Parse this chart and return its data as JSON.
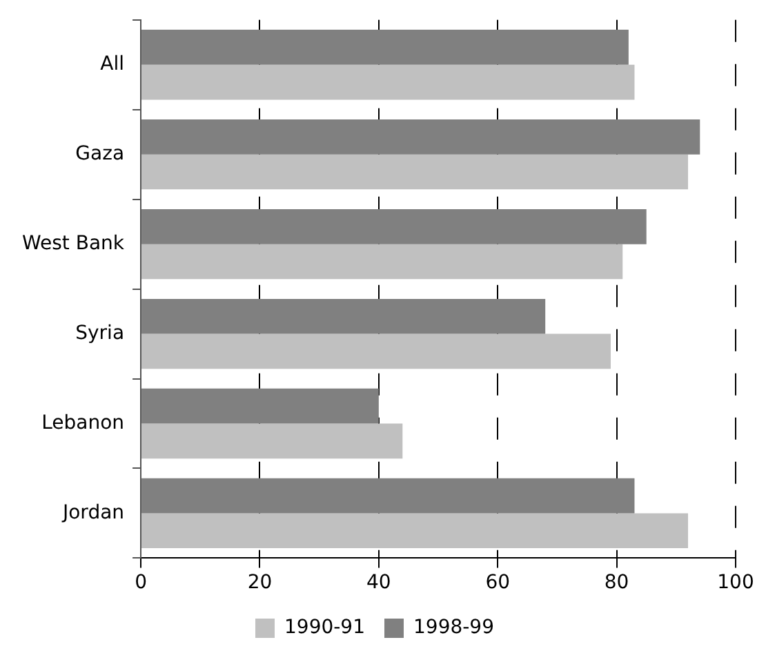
{
  "chart_data": {
    "type": "bar",
    "orientation": "horizontal",
    "categories": [
      "All",
      "Gaza",
      "West Bank",
      "Syria",
      "Lebanon",
      "Jordan"
    ],
    "series": [
      {
        "name": "1990-91",
        "color": "#c0c0c0",
        "values": [
          83,
          92,
          81,
          79,
          44,
          92
        ]
      },
      {
        "name": "1998-99",
        "color": "#808080",
        "values": [
          82,
          94,
          85,
          68,
          40,
          83
        ]
      }
    ],
    "xlim": [
      0,
      100
    ],
    "xticks": [
      0,
      20,
      40,
      60,
      80,
      100
    ],
    "grid": "x",
    "legend": "bottom"
  }
}
